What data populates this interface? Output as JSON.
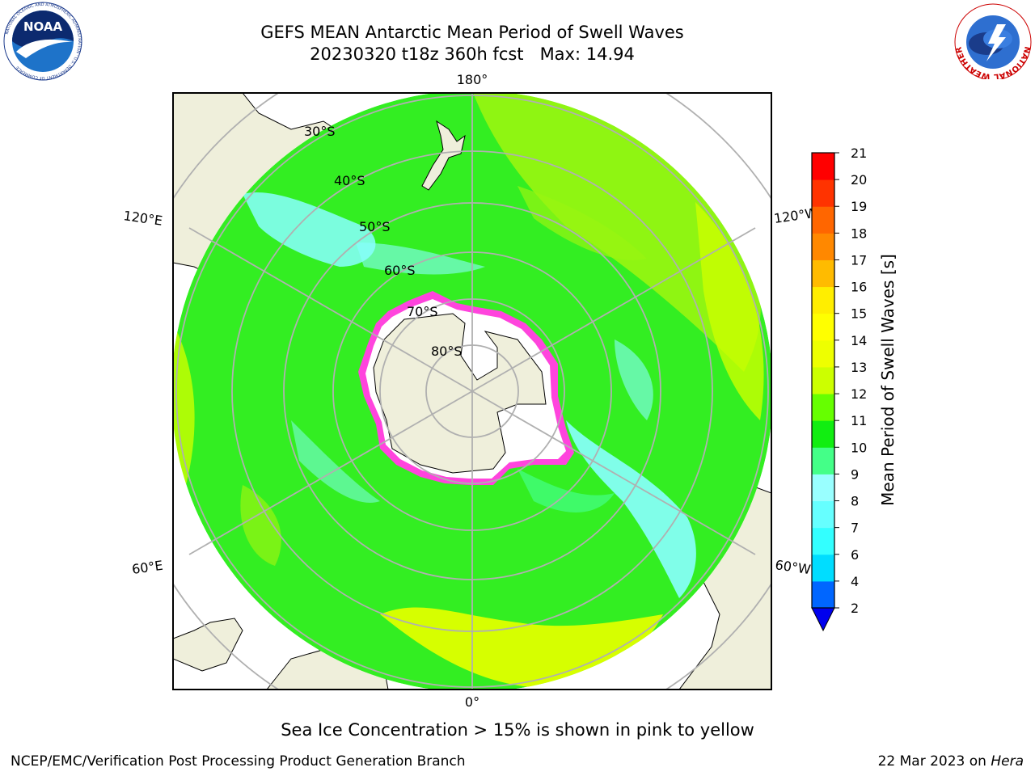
{
  "title": {
    "line1": "GEFS MEAN Antarctic Mean Period of Swell Waves",
    "line2": "20230320 t18z 360h fcst   Max: 14.94"
  },
  "logos": {
    "left": {
      "name": "noaa-logo",
      "text": "NOAA",
      "ring_text": "NATIONAL OCEANIC AND ATMOSPHERIC ADMINISTRATION · U.S. DEPARTMENT OF COMMERCE"
    },
    "right": {
      "name": "nws-logo",
      "ring_text": "NATIONAL WEATHER SERVICE"
    }
  },
  "map": {
    "projection": "south-polar-stereographic",
    "longitude_labels": {
      "top": "180°",
      "bottom": "0°",
      "left_upper": "120°E",
      "left_lower": "60°E",
      "right_upper": "120°W",
      "right_lower": "60°W"
    },
    "latitude_labels": [
      "30°S",
      "40°S",
      "50°S",
      "60°S",
      "70°S",
      "80°S"
    ],
    "colors": {
      "land": "#efefdb",
      "ocean_green": "#33ee22",
      "ice_fill": "#ffffff",
      "ice_edge": "#ff44dd",
      "grid": "#b0b0b0"
    }
  },
  "colorbar": {
    "title": "Mean Period of Swell Waves [s]",
    "ticks": [
      "2",
      "4",
      "6",
      "7",
      "8",
      "9",
      "10",
      "11",
      "12",
      "13",
      "14",
      "15",
      "16",
      "17",
      "18",
      "19",
      "20",
      "21"
    ],
    "colors": [
      "#0066ff",
      "#00ddff",
      "#33ffff",
      "#66ffff",
      "#99ffff",
      "#44ff88",
      "#11ee11",
      "#66ff00",
      "#ccff00",
      "#eeff00",
      "#ffff00",
      "#ffee00",
      "#ffbb00",
      "#ff8800",
      "#ff6600",
      "#ff3300",
      "#ff0000"
    ],
    "extend_color": "#0000ee"
  },
  "annotation": "Sea Ice Concentration > 15% is shown in pink to yellow",
  "footer": {
    "left": "NCEP/EMC/Verification Post Processing Product Generation Branch",
    "date": "22 Mar 2023 on ",
    "machine": "Hera"
  }
}
